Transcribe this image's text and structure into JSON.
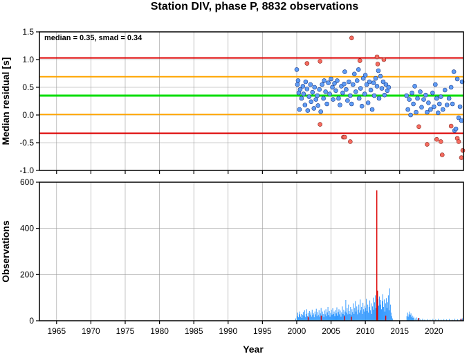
{
  "title": "Station DIV, phase P, 8832 observations",
  "xlabel": "Year",
  "colors": {
    "frame": "#000000",
    "grid": "#9a9a9a",
    "median_line": "#00dd00",
    "inner_band": "#ffa500",
    "outer_band": "#dd0000",
    "point_in": "#5f9cf5",
    "point_out": "#f66b5f",
    "bar": "#3399ff",
    "bar_highlight": "#dd0000"
  },
  "chart_data": [
    {
      "type": "scatter",
      "ylabel": "Median residual [s]",
      "annotation": "median = 0.35, smad = 0.34",
      "xlim": [
        1962.5,
        2024.3
      ],
      "ylim": [
        -1.0,
        1.5
      ],
      "xticks": [
        1965,
        1970,
        1975,
        1980,
        1985,
        1990,
        1995,
        2000,
        2005,
        2010,
        2015,
        2020
      ],
      "yticks": [
        {
          "v": -1.0,
          "label": "-1.0"
        },
        {
          "v": -0.5,
          "label": "-0.5"
        },
        {
          "v": 0.0,
          "label": "0.0"
        },
        {
          "v": 0.5,
          "label": "0.5"
        },
        {
          "v": 1.0,
          "label": "1.0"
        },
        {
          "v": 1.5,
          "label": "1.5"
        }
      ],
      "grid": true,
      "hlines": [
        {
          "y": 0.35,
          "role": "median"
        },
        {
          "y": 0.69,
          "role": "inner_band"
        },
        {
          "y": 0.01,
          "role": "inner_band"
        },
        {
          "y": 1.03,
          "role": "outer_band"
        },
        {
          "y": -0.33,
          "role": "outer_band"
        }
      ],
      "points": [
        [
          2000.0,
          0.82
        ],
        [
          2000.1,
          0.55
        ],
        [
          2000.2,
          0.62
        ],
        [
          2000.3,
          0.4
        ],
        [
          2000.4,
          0.1
        ],
        [
          2000.5,
          0.46
        ],
        [
          2000.7,
          0.3
        ],
        [
          2000.9,
          0.52
        ],
        [
          2001.0,
          0.38
        ],
        [
          2001.2,
          0.18
        ],
        [
          2001.3,
          0.6
        ],
        [
          2001.5,
          0.47
        ],
        [
          2001.6,
          0.08
        ],
        [
          2001.8,
          0.33
        ],
        [
          2002.0,
          0.55
        ],
        [
          2002.1,
          0.24
        ],
        [
          2002.3,
          0.41
        ],
        [
          2002.5,
          0.12
        ],
        [
          2002.6,
          0.5
        ],
        [
          2002.8,
          0.28
        ],
        [
          2003.0,
          0.35
        ],
        [
          2003.1,
          0.17
        ],
        [
          2003.3,
          0.46
        ],
        [
          2003.5,
          0.06
        ],
        [
          2003.7,
          0.55
        ],
        [
          2003.9,
          0.3
        ],
        [
          2004.0,
          0.62
        ],
        [
          2004.2,
          0.42
        ],
        [
          2004.4,
          0.2
        ],
        [
          2004.6,
          0.58
        ],
        [
          2004.8,
          0.38
        ],
        [
          2005.0,
          0.65
        ],
        [
          2005.2,
          0.5
        ],
        [
          2005.3,
          0.28
        ],
        [
          2005.5,
          0.57
        ],
        [
          2005.7,
          0.44
        ],
        [
          2005.9,
          0.62
        ],
        [
          2006.1,
          0.3
        ],
        [
          2006.3,
          0.18
        ],
        [
          2006.5,
          0.52
        ],
        [
          2006.7,
          0.4
        ],
        [
          2006.9,
          0.56
        ],
        [
          2007.0,
          0.78
        ],
        [
          2007.2,
          0.46
        ],
        [
          2007.4,
          0.26
        ],
        [
          2007.6,
          0.6
        ],
        [
          2007.8,
          0.35
        ],
        [
          2008.0,
          0.2
        ],
        [
          2008.2,
          0.55
        ],
        [
          2008.4,
          0.74
        ],
        [
          2008.6,
          0.42
        ],
        [
          2008.8,
          0.62
        ],
        [
          2009.0,
          0.82
        ],
        [
          2009.1,
          0.3
        ],
        [
          2009.3,
          0.48
        ],
        [
          2009.5,
          0.16
        ],
        [
          2009.7,
          0.66
        ],
        [
          2009.9,
          0.38
        ],
        [
          2010.0,
          0.72
        ],
        [
          2010.2,
          0.55
        ],
        [
          2010.4,
          0.22
        ],
        [
          2010.6,
          0.6
        ],
        [
          2010.8,
          0.45
        ],
        [
          2011.0,
          0.1
        ],
        [
          2011.2,
          0.58
        ],
        [
          2011.3,
          0.35
        ],
        [
          2011.5,
          0.66
        ],
        [
          2011.7,
          0.52
        ],
        [
          2011.9,
          0.8
        ],
        [
          2012.0,
          0.3
        ],
        [
          2012.2,
          0.7
        ],
        [
          2012.4,
          0.48
        ],
        [
          2012.6,
          0.6
        ],
        [
          2012.8,
          0.36
        ],
        [
          2013.0,
          0.55
        ],
        [
          2013.2,
          0.44
        ],
        [
          2013.4,
          0.5
        ],
        [
          2016.0,
          0.35
        ],
        [
          2016.2,
          0.1
        ],
        [
          2016.4,
          0.28
        ],
        [
          2016.6,
          0.0
        ],
        [
          2016.8,
          0.4
        ],
        [
          2017.0,
          0.2
        ],
        [
          2017.2,
          0.52
        ],
        [
          2017.4,
          0.05
        ],
        [
          2017.6,
          0.3
        ],
        [
          2018.0,
          0.42
        ],
        [
          2018.2,
          0.14
        ],
        [
          2018.5,
          0.28
        ],
        [
          2018.8,
          0.36
        ],
        [
          2019.0,
          0.05
        ],
        [
          2019.2,
          0.22
        ],
        [
          2019.5,
          0.1
        ],
        [
          2019.8,
          0.4
        ],
        [
          2020.0,
          0.15
        ],
        [
          2020.2,
          0.55
        ],
        [
          2020.4,
          0.3
        ],
        [
          2020.6,
          0.04
        ],
        [
          2020.8,
          0.2
        ],
        [
          2021.0,
          0.33
        ],
        [
          2021.3,
          0.1
        ],
        [
          2021.6,
          0.45
        ],
        [
          2021.9,
          0.18
        ],
        [
          2022.2,
          0.3
        ],
        [
          2022.5,
          0.5
        ],
        [
          2022.7,
          0.2
        ],
        [
          2022.9,
          0.78
        ],
        [
          2023.0,
          -0.28
        ],
        [
          2023.2,
          -0.25
        ],
        [
          2023.4,
          0.65
        ],
        [
          2023.6,
          -0.05
        ],
        [
          2023.8,
          0.15
        ],
        [
          2024.0,
          -0.1
        ],
        [
          2024.1,
          0.6
        ]
      ],
      "outliers": [
        [
          2001.5,
          0.93
        ],
        [
          2003.4,
          0.97
        ],
        [
          2003.4,
          -0.17
        ],
        [
          2006.8,
          -0.4
        ],
        [
          2007.0,
          -0.4
        ],
        [
          2007.8,
          -0.48
        ],
        [
          2008.0,
          1.39
        ],
        [
          2009.2,
          0.98
        ],
        [
          2011.7,
          1.05
        ],
        [
          2011.8,
          0.92
        ],
        [
          2012.7,
          1.0
        ],
        [
          2017.8,
          -0.21
        ],
        [
          2019.0,
          -0.53
        ],
        [
          2020.4,
          -0.44
        ],
        [
          2021.0,
          -0.48
        ],
        [
          2021.2,
          -0.72
        ],
        [
          2022.5,
          -0.2
        ],
        [
          2023.4,
          -0.42
        ],
        [
          2023.6,
          -0.48
        ],
        [
          2024.0,
          -0.77
        ],
        [
          2024.2,
          -0.64
        ]
      ]
    },
    {
      "type": "bar",
      "ylabel": "Observations",
      "xlim": [
        1962.5,
        2024.3
      ],
      "ylim": [
        0,
        600
      ],
      "xticks": [
        1965,
        1970,
        1975,
        1980,
        1985,
        1990,
        1995,
        2000,
        2005,
        2010,
        2015,
        2020
      ],
      "yticks": [
        {
          "v": 0,
          "label": "0"
        },
        {
          "v": 200,
          "label": "200"
        },
        {
          "v": 400,
          "label": "400"
        },
        {
          "v": 600,
          "label": "600"
        }
      ],
      "grid": true,
      "bin_width": 0.1,
      "bars": [
        [
          1999.8,
          10
        ],
        [
          2000.0,
          20
        ],
        [
          2000.1,
          35
        ],
        [
          2000.2,
          15
        ],
        [
          2000.3,
          28
        ],
        [
          2000.4,
          40
        ],
        [
          2000.5,
          18
        ],
        [
          2000.6,
          30
        ],
        [
          2000.7,
          12
        ],
        [
          2000.8,
          25
        ],
        [
          2000.9,
          38
        ],
        [
          2001.0,
          22
        ],
        [
          2001.1,
          45
        ],
        [
          2001.2,
          16
        ],
        [
          2001.3,
          30
        ],
        [
          2001.4,
          50
        ],
        [
          2001.5,
          20
        ],
        [
          2001.6,
          34
        ],
        [
          2001.7,
          14
        ],
        [
          2001.8,
          42
        ],
        [
          2001.9,
          26
        ],
        [
          2002.0,
          36
        ],
        [
          2002.1,
          18
        ],
        [
          2002.2,
          48
        ],
        [
          2002.3,
          24
        ],
        [
          2002.4,
          32
        ],
        [
          2002.5,
          15
        ],
        [
          2002.6,
          40
        ],
        [
          2002.7,
          28
        ],
        [
          2002.8,
          52
        ],
        [
          2002.9,
          20
        ],
        [
          2003.0,
          38
        ],
        [
          2003.1,
          25
        ],
        [
          2003.2,
          46
        ],
        [
          2003.3,
          18
        ],
        [
          2003.4,
          32
        ],
        [
          2003.5,
          55
        ],
        [
          2003.6,
          22
        ],
        [
          2003.7,
          40
        ],
        [
          2003.8,
          30
        ],
        [
          2003.9,
          16
        ],
        [
          2004.0,
          44
        ],
        [
          2004.1,
          28
        ],
        [
          2004.2,
          50
        ],
        [
          2004.3,
          20
        ],
        [
          2004.4,
          36
        ],
        [
          2004.5,
          60
        ],
        [
          2004.6,
          24
        ],
        [
          2004.7,
          42
        ],
        [
          2004.8,
          18
        ],
        [
          2004.9,
          34
        ],
        [
          2005.0,
          48
        ],
        [
          2005.1,
          26
        ],
        [
          2005.2,
          54
        ],
        [
          2005.3,
          30
        ],
        [
          2005.4,
          40
        ],
        [
          2005.5,
          20
        ],
        [
          2005.6,
          46
        ],
        [
          2005.7,
          32
        ],
        [
          2005.8,
          58
        ],
        [
          2005.9,
          22
        ],
        [
          2006.0,
          38
        ],
        [
          2006.1,
          50
        ],
        [
          2006.2,
          28
        ],
        [
          2006.3,
          44
        ],
        [
          2006.4,
          18
        ],
        [
          2006.5,
          36
        ],
        [
          2006.6,
          62
        ],
        [
          2006.7,
          30
        ],
        [
          2006.8,
          48
        ],
        [
          2006.9,
          24
        ],
        [
          2007.0,
          40
        ],
        [
          2007.1,
          90
        ],
        [
          2007.2,
          35
        ],
        [
          2007.3,
          55
        ],
        [
          2007.4,
          28
        ],
        [
          2007.5,
          70
        ],
        [
          2007.6,
          42
        ],
        [
          2007.7,
          30
        ],
        [
          2007.8,
          60
        ],
        [
          2007.9,
          25
        ],
        [
          2008.0,
          50
        ],
        [
          2008.1,
          38
        ],
        [
          2008.2,
          75
        ],
        [
          2008.3,
          30
        ],
        [
          2008.4,
          55
        ],
        [
          2008.5,
          85
        ],
        [
          2008.6,
          40
        ],
        [
          2008.7,
          62
        ],
        [
          2008.8,
          28
        ],
        [
          2008.9,
          48
        ],
        [
          2009.0,
          70
        ],
        [
          2009.1,
          35
        ],
        [
          2009.2,
          92
        ],
        [
          2009.3,
          45
        ],
        [
          2009.4,
          60
        ],
        [
          2009.5,
          30
        ],
        [
          2009.6,
          78
        ],
        [
          2009.7,
          50
        ],
        [
          2009.8,
          40
        ],
        [
          2009.9,
          65
        ],
        [
          2010.0,
          55
        ],
        [
          2010.1,
          95
        ],
        [
          2010.2,
          42
        ],
        [
          2010.3,
          70
        ],
        [
          2010.4,
          35
        ],
        [
          2010.5,
          60
        ],
        [
          2010.6,
          88
        ],
        [
          2010.7,
          45
        ],
        [
          2010.8,
          75
        ],
        [
          2010.9,
          30
        ],
        [
          2011.0,
          62
        ],
        [
          2011.1,
          100
        ],
        [
          2011.2,
          48
        ],
        [
          2011.3,
          80
        ],
        [
          2011.4,
          110
        ],
        [
          2011.5,
          55
        ],
        [
          2011.6,
          128
        ],
        [
          2011.7,
          120
        ],
        [
          2011.8,
          95
        ],
        [
          2011.9,
          65
        ],
        [
          2012.0,
          105
        ],
        [
          2012.1,
          70
        ],
        [
          2012.2,
          90
        ],
        [
          2012.3,
          50
        ],
        [
          2012.4,
          85
        ],
        [
          2012.5,
          115
        ],
        [
          2012.6,
          60
        ],
        [
          2012.7,
          92
        ],
        [
          2012.8,
          40
        ],
        [
          2012.9,
          75
        ],
        [
          2013.0,
          98
        ],
        [
          2013.1,
          55
        ],
        [
          2013.2,
          80
        ],
        [
          2013.3,
          110
        ],
        [
          2013.4,
          45
        ],
        [
          2013.5,
          140
        ],
        [
          2013.6,
          70
        ],
        [
          2013.7,
          35
        ],
        [
          2013.8,
          20
        ],
        [
          2013.9,
          10
        ],
        [
          2016.0,
          20
        ],
        [
          2016.1,
          35
        ],
        [
          2016.2,
          18
        ],
        [
          2016.3,
          28
        ],
        [
          2016.4,
          40
        ],
        [
          2016.5,
          25
        ],
        [
          2016.6,
          32
        ],
        [
          2016.7,
          15
        ],
        [
          2016.8,
          22
        ],
        [
          2016.9,
          12
        ],
        [
          2017.0,
          18
        ],
        [
          2017.2,
          10
        ],
        [
          2017.4,
          14
        ],
        [
          2017.6,
          8
        ],
        [
          2017.8,
          12
        ],
        [
          2018.0,
          6
        ],
        [
          2018.3,
          9
        ],
        [
          2018.6,
          5
        ],
        [
          2019.0,
          7
        ],
        [
          2019.4,
          5
        ],
        [
          2019.8,
          8
        ],
        [
          2020.2,
          6
        ],
        [
          2020.6,
          9
        ],
        [
          2021.0,
          5
        ],
        [
          2021.4,
          7
        ],
        [
          2021.8,
          6
        ],
        [
          2022.2,
          8
        ],
        [
          2022.6,
          5
        ],
        [
          2023.0,
          9
        ],
        [
          2023.4,
          6
        ],
        [
          2023.8,
          8
        ],
        [
          2024.1,
          10
        ]
      ],
      "highlight_bars": [
        [
          2001.6,
          18
        ],
        [
          2003.5,
          22
        ],
        [
          2006.9,
          20
        ],
        [
          2007.9,
          18
        ],
        [
          2011.6,
          565
        ],
        [
          2011.7,
          130
        ],
        [
          2012.9,
          22
        ],
        [
          2017.7,
          12
        ],
        [
          2023.9,
          9
        ]
      ]
    }
  ]
}
